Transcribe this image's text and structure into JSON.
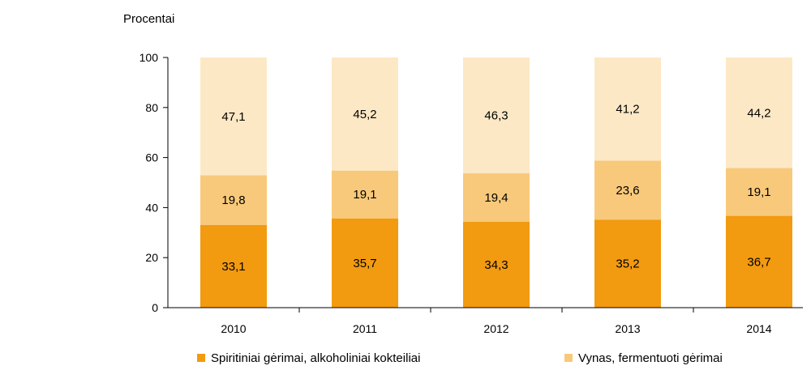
{
  "chart_data": {
    "type": "bar",
    "stacked": true,
    "ylabel": "Procentai",
    "ylim": [
      0,
      100
    ],
    "yticks": [
      0,
      20,
      40,
      60,
      80,
      100
    ],
    "categories": [
      "2010",
      "2011",
      "2012",
      "2013",
      "2014"
    ],
    "series": [
      {
        "name": "Spiritiniai gėrimai, alkoholiniai kokteiliai",
        "color": "#f29a10",
        "values": [
          33.1,
          35.7,
          34.3,
          35.2,
          36.7
        ],
        "labels": [
          "33,1",
          "35,7",
          "34,3",
          "35,2",
          "36,7"
        ]
      },
      {
        "name": "Vynas, fermentuoti gėrimai",
        "color": "#f8c97a",
        "values": [
          19.8,
          19.1,
          19.4,
          23.6,
          19.1
        ],
        "labels": [
          "19,8",
          "19,1",
          "19,4",
          "23,6",
          "19,1"
        ]
      },
      {
        "name": "",
        "color": "#fde8c6",
        "values": [
          47.1,
          45.2,
          46.3,
          41.2,
          44.2
        ],
        "labels": [
          "47,1",
          "45,2",
          "46,3",
          "41,2",
          "44,2"
        ]
      }
    ],
    "legend": {
      "position": "bottom",
      "items": [
        {
          "label": "Spiritiniai gėrimai, alkoholiniai kokteiliai",
          "color": "#f29a10"
        },
        {
          "label": "Vynas, fermentuoti gėrimai",
          "color": "#f8c97a"
        }
      ]
    },
    "grid": false
  }
}
